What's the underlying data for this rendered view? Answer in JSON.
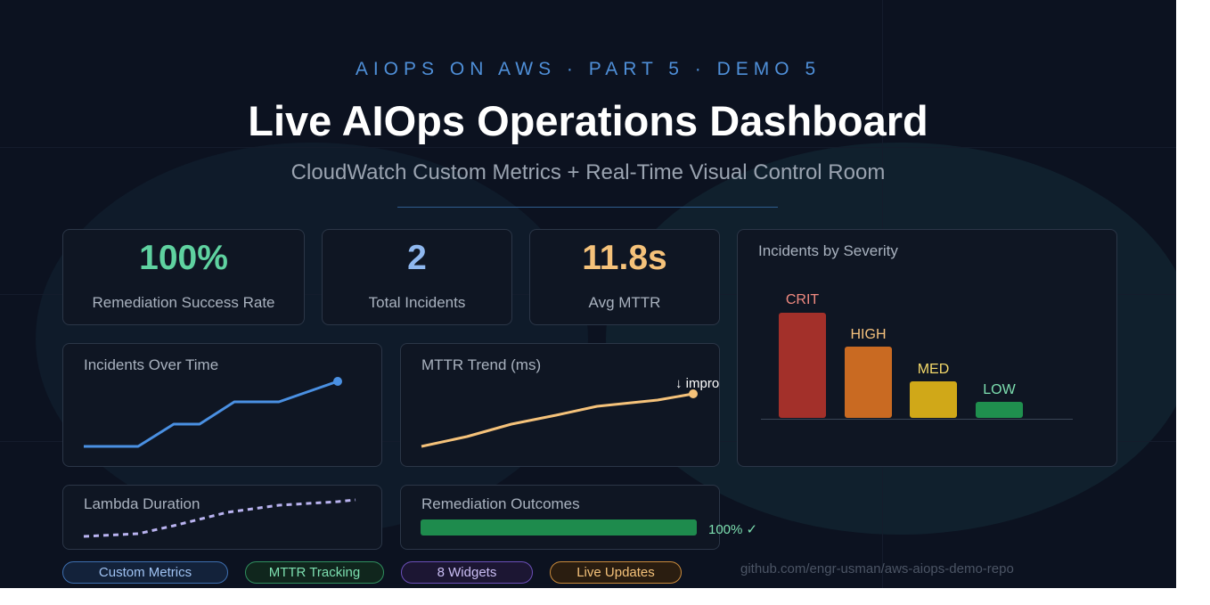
{
  "header": {
    "eyebrow": "AIOPS ON AWS · PART 5 · DEMO 5",
    "title": "Live AIOps Operations Dashboard",
    "subtitle": "CloudWatch Custom Metrics + Real-Time Visual Control Room"
  },
  "stats": [
    {
      "value": "100%",
      "label": "Remediation Success Rate",
      "color": "#5fd2a0"
    },
    {
      "value": "2",
      "label": "Total Incidents",
      "color": "#8fb8ef"
    },
    {
      "value": "11.8s",
      "label": "Avg MTTR",
      "color": "#f5c27a"
    }
  ],
  "incidents_over_time": {
    "title": "Incidents Over Time",
    "color": "#4a90e2"
  },
  "mttr_trend": {
    "title": "MTTR Trend (ms)",
    "annotation": "↓ improving",
    "color": "#f5c27a"
  },
  "lambda_duration": {
    "title": "Lambda Duration",
    "color": "#b9b3f0"
  },
  "remediation_outcomes": {
    "title": "Remediation Outcomes",
    "value_label": "100% ✓",
    "percent": 100,
    "color": "#1e8b4d"
  },
  "severity": {
    "title": "Incidents by Severity",
    "bars": [
      {
        "label": "CRIT",
        "color": "#a3302a",
        "text_color": "#f08a80"
      },
      {
        "label": "HIGH",
        "color": "#c96a22",
        "text_color": "#f6c27d"
      },
      {
        "label": "MED",
        "color": "#d0a818",
        "text_color": "#f4d96a"
      },
      {
        "label": "LOW",
        "color": "#1f8f4e",
        "text_color": "#7ddfb0"
      }
    ]
  },
  "tags": [
    {
      "label": "Custom Metrics",
      "border": "#3d6fb0",
      "bg": "#13223a",
      "text": "#9fc2f2"
    },
    {
      "label": "MTTR Tracking",
      "border": "#2f8f5e",
      "bg": "#10261d",
      "text": "#7ddfb0"
    },
    {
      "label": "8 Widgets",
      "border": "#6b4fb8",
      "bg": "#1c1633",
      "text": "#c9bdf3"
    },
    {
      "label": "Live Updates",
      "border": "#c98a3a",
      "bg": "#2a1d10",
      "text": "#f5c27a"
    }
  ],
  "repo": "github.com/engr-usman/aws-aiops-demo-repo"
}
